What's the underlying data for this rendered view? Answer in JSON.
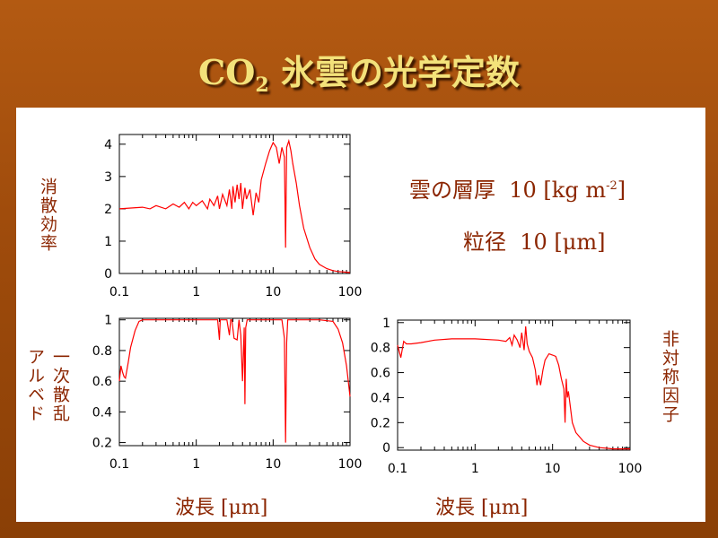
{
  "title": {
    "main": "CO",
    "sub": "2",
    "rest": " 氷雲の光学定数"
  },
  "info": {
    "thickness_label": "雲の層厚",
    "thickness_value": "10 [kg m",
    "thickness_exp": "-2",
    "thickness_close": "]",
    "radius_label": "粒径",
    "radius_value": "10 [μm]"
  },
  "labels": {
    "extinction": "消散効率",
    "albedo_line1": "一次散乱",
    "albedo_line2": "アルベド",
    "asymmetry": "非対称因子",
    "xlabel_left": "波長 [μm]",
    "xlabel_right": "波長 [μm]"
  },
  "colors": {
    "line": "#ff0000",
    "text": "#8b2500",
    "title": "#f3e27a"
  },
  "chart_data": [
    {
      "type": "line",
      "ylabel": "消散効率",
      "xscale": "log",
      "xlim": [
        0.1,
        100
      ],
      "ylim": [
        0,
        4.3
      ],
      "xticks": [
        "0.1",
        "1",
        "10",
        "100"
      ],
      "yticks": [
        "0",
        "1",
        "2",
        "3",
        "4"
      ],
      "grid": false,
      "x": [
        0.1,
        0.2,
        0.25,
        0.3,
        0.4,
        0.5,
        0.6,
        0.7,
        0.8,
        0.9,
        1.0,
        1.2,
        1.4,
        1.5,
        1.7,
        1.9,
        2.0,
        2.2,
        2.5,
        2.7,
        2.9,
        3.0,
        3.2,
        3.4,
        3.6,
        3.8,
        4.0,
        4.3,
        4.5,
        5.0,
        5.5,
        6.0,
        6.5,
        7.0,
        8.0,
        9.0,
        10,
        11,
        12,
        13,
        14,
        14.5,
        15,
        15.5,
        16,
        17,
        18,
        20,
        22,
        25,
        30,
        35,
        40,
        50,
        60,
        70,
        80,
        90,
        100
      ],
      "y": [
        2.0,
        2.05,
        2.0,
        2.1,
        2.0,
        2.15,
        2.05,
        2.2,
        2.0,
        2.2,
        2.1,
        2.25,
        2.0,
        2.3,
        2.1,
        2.4,
        2.0,
        2.45,
        2.1,
        2.6,
        2.0,
        2.7,
        2.2,
        2.75,
        2.3,
        2.8,
        2.0,
        2.65,
        2.3,
        2.6,
        1.8,
        2.5,
        2.2,
        2.9,
        3.4,
        3.8,
        4.05,
        3.9,
        3.4,
        3.9,
        3.6,
        0.8,
        3.9,
        4.0,
        4.1,
        3.8,
        3.4,
        2.8,
        2.1,
        1.4,
        0.8,
        0.45,
        0.28,
        0.15,
        0.09,
        0.06,
        0.05,
        0.04,
        0.03
      ]
    },
    {
      "type": "line",
      "ylabel": "一次散乱アルベド",
      "xscale": "log",
      "xlim": [
        0.1,
        100
      ],
      "ylim": [
        0.18,
        1.01
      ],
      "xticks": [
        "0.1",
        "1",
        "10",
        "100"
      ],
      "yticks": [
        "0.2",
        "0.4",
        "0.6",
        "0.8",
        "1"
      ],
      "grid": false,
      "x": [
        0.1,
        0.105,
        0.11,
        0.115,
        0.12,
        0.13,
        0.14,
        0.16,
        0.18,
        0.2,
        0.3,
        1.0,
        1.9,
        2.0,
        2.05,
        2.1,
        2.5,
        2.7,
        2.8,
        2.9,
        3.1,
        3.4,
        3.6,
        3.8,
        4.0,
        4.2,
        4.3,
        4.4,
        4.6,
        5.0,
        6.0,
        8.0,
        10,
        13,
        14,
        14.5,
        15,
        15.5,
        16,
        20,
        40,
        60,
        70,
        80,
        90,
        100
      ],
      "y": [
        0.6,
        0.7,
        0.66,
        0.63,
        0.62,
        0.72,
        0.82,
        0.93,
        0.99,
        1.0,
        1.0,
        1.0,
        1.0,
        0.87,
        1.0,
        1.0,
        1.0,
        0.9,
        1.0,
        1.0,
        0.88,
        0.87,
        1.0,
        0.9,
        0.6,
        0.95,
        0.45,
        0.95,
        1.0,
        1.0,
        1.0,
        1.0,
        1.0,
        1.0,
        0.88,
        0.2,
        0.85,
        1.0,
        1.0,
        1.0,
        1.0,
        0.99,
        0.94,
        0.85,
        0.7,
        0.5
      ]
    },
    {
      "type": "line",
      "ylabel": "非対称因子",
      "xscale": "log",
      "xlim": [
        0.1,
        100
      ],
      "ylim": [
        -0.02,
        1.02
      ],
      "xticks": [
        "0.1",
        "1",
        "10",
        "100"
      ],
      "yticks": [
        "0",
        "0.2",
        "0.4",
        "0.6",
        "0.8",
        "1"
      ],
      "grid": false,
      "x": [
        0.1,
        0.11,
        0.12,
        0.13,
        0.15,
        0.2,
        0.3,
        0.5,
        1.0,
        2.0,
        2.5,
        2.8,
        3.0,
        3.2,
        3.5,
        3.8,
        4.0,
        4.3,
        4.5,
        4.7,
        5.0,
        5.5,
        6.0,
        6.3,
        6.6,
        7.0,
        7.5,
        8.0,
        9.0,
        10,
        11,
        12,
        13,
        14,
        14.5,
        15,
        15.5,
        16,
        18,
        20,
        25,
        30,
        40,
        50,
        60,
        80,
        100
      ],
      "y": [
        0.82,
        0.72,
        0.85,
        0.83,
        0.83,
        0.84,
        0.86,
        0.87,
        0.87,
        0.86,
        0.85,
        0.88,
        0.82,
        0.9,
        0.86,
        0.8,
        0.92,
        0.78,
        0.97,
        0.83,
        0.77,
        0.72,
        0.62,
        0.5,
        0.58,
        0.5,
        0.62,
        0.7,
        0.75,
        0.74,
        0.73,
        0.66,
        0.55,
        0.47,
        0.2,
        0.55,
        0.4,
        0.45,
        0.2,
        0.12,
        0.05,
        0.02,
        0.0,
        -0.005,
        -0.01,
        -0.01,
        -0.01
      ]
    }
  ]
}
